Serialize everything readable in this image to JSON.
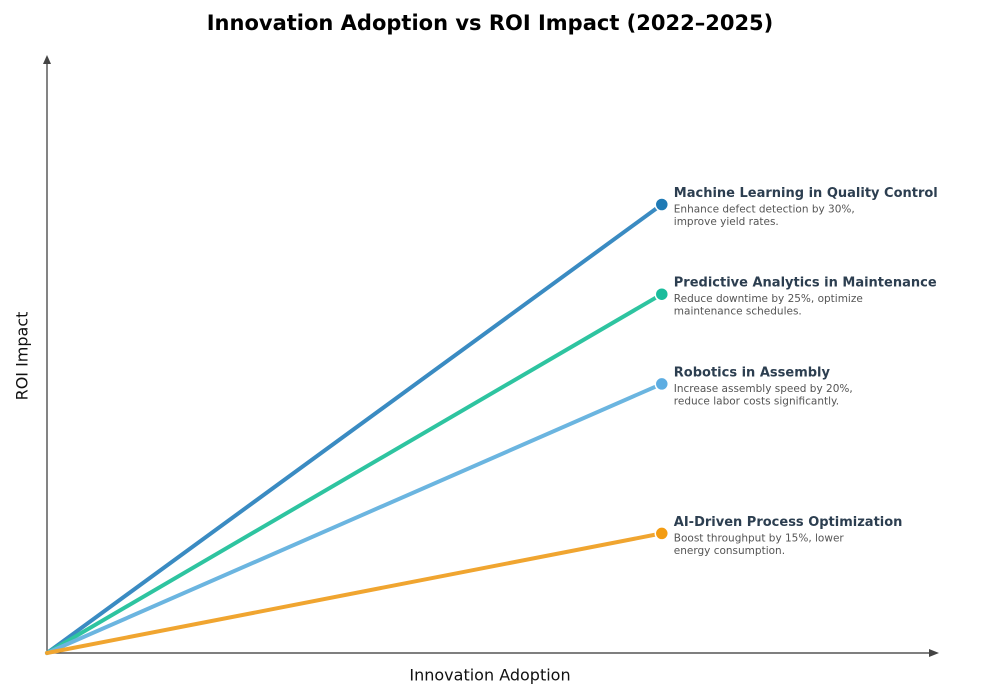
{
  "chart_data": {
    "type": "line",
    "title": "Innovation Adoption vs ROI Impact (2022–2025)",
    "x_label": "Innovation Adoption",
    "y_label": "ROI Impact",
    "x": [
      0,
      69
    ],
    "xlim": [
      0,
      100
    ],
    "ylim": [
      0,
      100
    ],
    "series": [
      {
        "name": "Machine Learning in Quality Control",
        "color": "#3a8bc2",
        "dot_color": "#1f7ab5",
        "values": [
          0,
          75
        ],
        "description": [
          "Enhance defect detection by 30%,",
          "improve yield rates."
        ]
      },
      {
        "name": "Predictive Analytics in Maintenance",
        "color": "#2ec4a0",
        "dot_color": "#1abc9c",
        "values": [
          0,
          60
        ],
        "description": [
          "Reduce downtime by 25%, optimize",
          "maintenance schedules."
        ]
      },
      {
        "name": "Robotics in Assembly",
        "color": "#6bb5e0",
        "dot_color": "#5dade2",
        "values": [
          0,
          45
        ],
        "description": [
          "Increase assembly speed by 20%,",
          "reduce labor costs significantly."
        ]
      },
      {
        "name": "AI-Driven Process Optimization",
        "color": "#f0a530",
        "dot_color": "#f39c12",
        "values": [
          0,
          20
        ],
        "description": [
          "Boost throughput by 15%, lower",
          "energy consumption."
        ]
      }
    ]
  }
}
